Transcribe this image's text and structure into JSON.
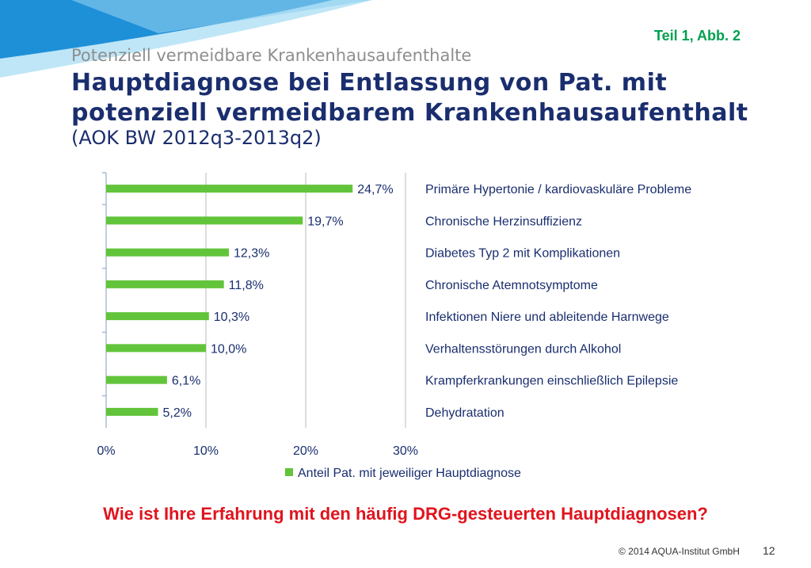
{
  "slide": {
    "figure_ref": "Teil  1, Abb. 2",
    "supertitle": "Potenziell vermeidbare Krankenhausaufenthalte",
    "title_line1": "Hauptdiagnose bei Entlassung von Pat. mit",
    "title_line2": "potenziell vermeidbarem Krankenhausaufenthalt",
    "period": "(AOK BW 2012q3-2013q2)",
    "question": "Wie ist Ihre Erfahrung mit den häufig DRG-gesteuerten Hauptdiagnosen?",
    "copyright": "© 2014 AQUA-Institut GmbH",
    "page_number": "12"
  },
  "colors": {
    "bar": "#62c43a",
    "title": "#1a2e6e",
    "question": "#e0141e",
    "figure_ref": "#00a050",
    "deco_dark": "#1e90d8",
    "deco_light": "#bfe6f7"
  },
  "chart_data": {
    "type": "bar",
    "orientation": "horizontal",
    "categories": [
      "Primäre Hypertonie / kardiovaskuläre Probleme",
      "Chronische Herzinsuffizienz",
      "Diabetes Typ 2 mit Komplikationen",
      "Chronische Atemnotsymptome",
      "Infektionen Niere und ableitende Harnwege",
      "Verhaltensstörungen durch Alkohol",
      "Krampferkrankungen einschließlich Epilepsie",
      "Dehydratation"
    ],
    "series": [
      {
        "name": "Anteil Pat. mit jeweiliger Hauptdiagnose",
        "values": [
          24.7,
          19.7,
          12.3,
          11.8,
          10.3,
          10.0,
          6.1,
          5.2
        ],
        "labels": [
          "24,7%",
          "19,7%",
          "12,3%",
          "11,8%",
          "10,3%",
          "10,0%",
          "6,1%",
          "5,2%"
        ]
      }
    ],
    "xlim": [
      0,
      30
    ],
    "xticks": [
      0,
      10,
      20,
      30
    ],
    "xtick_labels": [
      "0%",
      "10%",
      "20%",
      "30%"
    ],
    "grid": "vertical",
    "legend_position": "bottom"
  }
}
